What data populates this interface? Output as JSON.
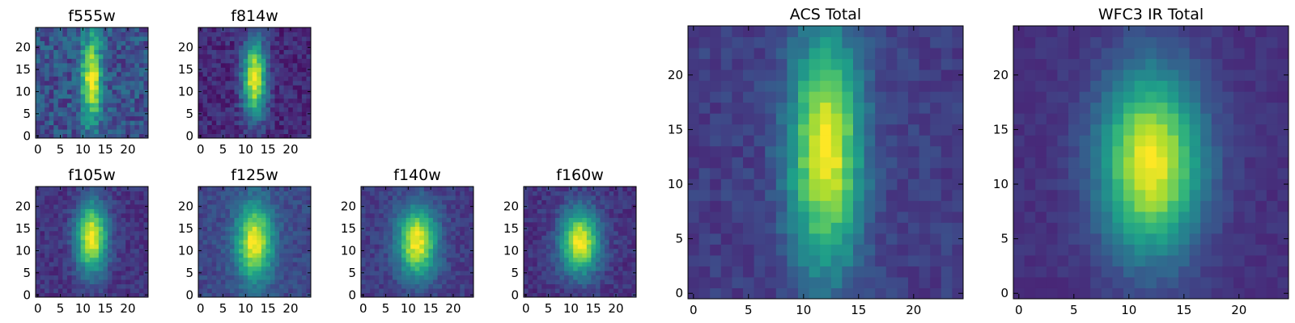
{
  "figure": {
    "colormap": "viridis",
    "grid": false,
    "colors": {
      "cmap_low": "#440154",
      "cmap_mid": "#21918c",
      "cmap_high": "#fde725",
      "frame": "#000000"
    }
  },
  "chart_data": [
    {
      "type": "heatmap",
      "title": "f555w",
      "x_ticks": [
        "0",
        "5",
        "10",
        "15",
        "20"
      ],
      "y_ticks": [
        "0",
        "5",
        "10",
        "15",
        "20"
      ],
      "xlim": [
        -0.5,
        24.5
      ],
      "ylim": [
        -0.5,
        24.5
      ],
      "grid_size": [
        25,
        25
      ],
      "peak": {
        "x": 12,
        "y": 13
      },
      "spread": {
        "x": 1.6,
        "y": 7.0
      },
      "noise": 0.28,
      "background": 0.25,
      "seed": 11
    },
    {
      "type": "heatmap",
      "title": "f814w",
      "x_ticks": [
        "0",
        "5",
        "10",
        "15",
        "20"
      ],
      "y_ticks": [
        "0",
        "5",
        "10",
        "15",
        "20"
      ],
      "xlim": [
        -0.5,
        24.5
      ],
      "ylim": [
        -0.5,
        24.5
      ],
      "grid_size": [
        25,
        25
      ],
      "peak": {
        "x": 12,
        "y": 13
      },
      "spread": {
        "x": 1.8,
        "y": 6.0
      },
      "noise": 0.18,
      "background": 0.12,
      "seed": 23
    },
    {
      "type": "heatmap",
      "title": "f105w",
      "x_ticks": [
        "0",
        "5",
        "10",
        "15",
        "20"
      ],
      "y_ticks": [
        "0",
        "5",
        "10",
        "15",
        "20"
      ],
      "xlim": [
        -0.5,
        24.5
      ],
      "ylim": [
        -0.5,
        24.5
      ],
      "grid_size": [
        25,
        25
      ],
      "peak": {
        "x": 12,
        "y": 13
      },
      "spread": {
        "x": 2.4,
        "y": 5.5
      },
      "noise": 0.14,
      "background": 0.15,
      "seed": 37
    },
    {
      "type": "heatmap",
      "title": "f125w",
      "x_ticks": [
        "0",
        "5",
        "10",
        "15",
        "20"
      ],
      "y_ticks": [
        "0",
        "5",
        "10",
        "15",
        "20"
      ],
      "xlim": [
        -0.5,
        24.5
      ],
      "ylim": [
        -0.5,
        24.5
      ],
      "grid_size": [
        25,
        25
      ],
      "peak": {
        "x": 12,
        "y": 12
      },
      "spread": {
        "x": 2.8,
        "y": 6.0
      },
      "noise": 0.14,
      "background": 0.22,
      "seed": 41
    },
    {
      "type": "heatmap",
      "title": "f140w",
      "x_ticks": [
        "0",
        "5",
        "10",
        "15",
        "20"
      ],
      "y_ticks": [
        "0",
        "5",
        "10",
        "15",
        "20"
      ],
      "xlim": [
        -0.5,
        24.5
      ],
      "ylim": [
        -0.5,
        24.5
      ],
      "grid_size": [
        25,
        25
      ],
      "peak": {
        "x": 12,
        "y": 12
      },
      "spread": {
        "x": 3.0,
        "y": 5.5
      },
      "noise": 0.14,
      "background": 0.18,
      "seed": 53
    },
    {
      "type": "heatmap",
      "title": "f160w",
      "x_ticks": [
        "0",
        "5",
        "10",
        "15",
        "20"
      ],
      "y_ticks": [
        "0",
        "5",
        "10",
        "15",
        "20"
      ],
      "xlim": [
        -0.5,
        24.5
      ],
      "ylim": [
        -0.5,
        24.5
      ],
      "grid_size": [
        25,
        25
      ],
      "peak": {
        "x": 12,
        "y": 12
      },
      "spread": {
        "x": 3.0,
        "y": 5.0
      },
      "noise": 0.14,
      "background": 0.15,
      "seed": 67
    },
    {
      "type": "heatmap",
      "title": "ACS Total",
      "x_ticks": [
        "0",
        "5",
        "10",
        "15",
        "20"
      ],
      "y_ticks": [
        "0",
        "5",
        "10",
        "15",
        "20"
      ],
      "xlim": [
        -0.5,
        24.5
      ],
      "ylim": [
        -0.5,
        24.5
      ],
      "grid_size": [
        25,
        25
      ],
      "peak": {
        "x": 12,
        "y": 13
      },
      "spread": {
        "x": 2.3,
        "y": 7.5
      },
      "noise": 0.12,
      "background": 0.18,
      "seed": 79
    },
    {
      "type": "heatmap",
      "title": "WFC3 IR Total",
      "x_ticks": [
        "0",
        "5",
        "10",
        "15",
        "20"
      ],
      "y_ticks": [
        "0",
        "5",
        "10",
        "15",
        "20"
      ],
      "xlim": [
        -0.5,
        24.5
      ],
      "ylim": [
        -0.5,
        24.5
      ],
      "grid_size": [
        25,
        25
      ],
      "peak": {
        "x": 12,
        "y": 12
      },
      "spread": {
        "x": 3.2,
        "y": 5.8
      },
      "noise": 0.07,
      "background": 0.14,
      "seed": 97
    }
  ]
}
